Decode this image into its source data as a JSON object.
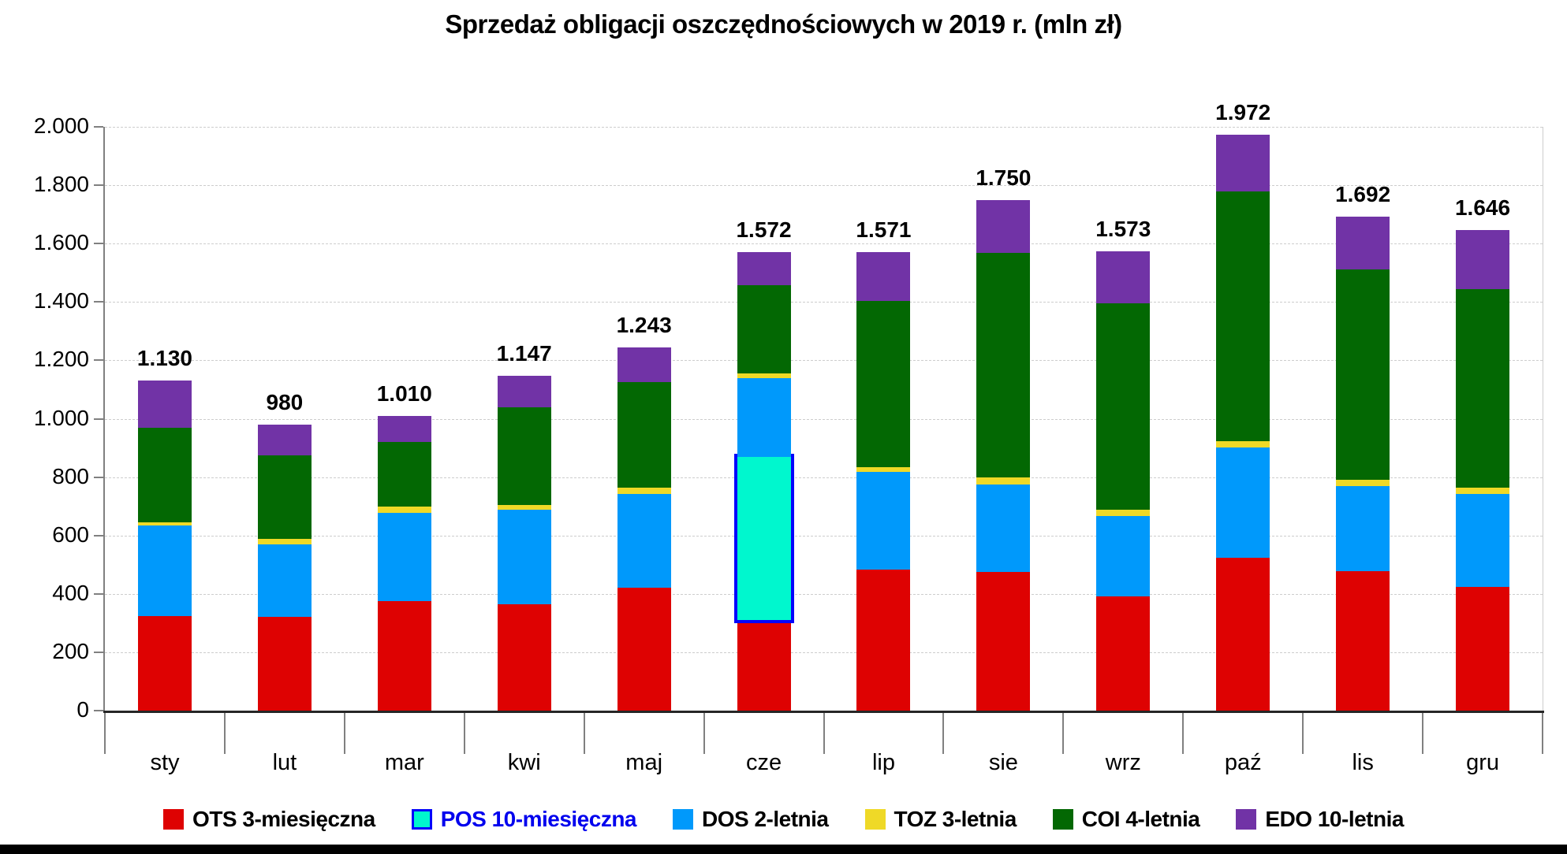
{
  "title": "Sprzedaż obligacji oszczędnościowych w 2019 r. (mln zł)",
  "colors": {
    "ots": "#de0202",
    "pos_fill": "#00f7ce",
    "pos_border": "#0404fb",
    "dos": "#0099fb",
    "toz": "#efd927",
    "coi": "#036803",
    "edo": "#7133a6",
    "grid": "#cdcdcd",
    "y_axis": "#808080",
    "x_axis": "#262626",
    "pos_label_text": "#0000ee",
    "default_text": "#000000"
  },
  "chart_data": {
    "type": "bar",
    "stacked": true,
    "title": "Sprzedaż obligacji oszczędnościowych w 2019 r. (mln zł)",
    "categories": [
      "sty",
      "lut",
      "mar",
      "kwi",
      "maj",
      "cze",
      "lip",
      "sie",
      "wrz",
      "paź",
      "lis",
      "gru"
    ],
    "series": [
      {
        "name": "OTS 3-miesięczna",
        "color_key": "ots",
        "values": [
          325,
          320,
          375,
          365,
          422,
          310,
          483,
          475,
          392,
          524,
          478,
          425
        ]
      },
      {
        "name": "POS 10-miesięczna",
        "color_key": "pos_fill",
        "outline_key": "pos_border",
        "values": [
          0,
          0,
          0,
          0,
          0,
          560,
          0,
          0,
          0,
          0,
          0,
          0
        ]
      },
      {
        "name": "DOS 2-letnia",
        "color_key": "dos",
        "values": [
          310,
          250,
          303,
          322,
          320,
          270,
          336,
          301,
          275,
          378,
          292,
          317
        ]
      },
      {
        "name": "TOZ 3-letnia",
        "color_key": "toz",
        "values": [
          11,
          18,
          20,
          18,
          21,
          14,
          16,
          22,
          20,
          21,
          22,
          23
        ]
      },
      {
        "name": "COI 4-letnia",
        "color_key": "coi",
        "values": [
          324,
          286,
          222,
          335,
          362,
          304,
          569,
          771,
          709,
          856,
          720,
          679
        ]
      },
      {
        "name": "EDO 10-letnia",
        "color_key": "edo",
        "values": [
          160,
          106,
          90,
          107,
          118,
          114,
          167,
          181,
          177,
          193,
          180,
          202
        ]
      }
    ],
    "totals": [
      1130,
      980,
      1010,
      1147,
      1243,
      1572,
      1571,
      1750,
      1573,
      1972,
      1692,
      1646
    ],
    "total_labels": [
      "1.130",
      "980",
      "1.010",
      "1.147",
      "1.243",
      "1.572",
      "1.571",
      "1.750",
      "1.573",
      "1.972",
      "1.692",
      "1.646"
    ],
    "y_tick_labels_top_down": [
      "2.000",
      "1.800",
      "1.600",
      "1.400",
      "1.200",
      "1.000",
      "800",
      "600",
      "400",
      "200",
      "0"
    ],
    "ylim": [
      0,
      2000
    ],
    "y_step": 200,
    "grid": true,
    "legend_position": "bottom"
  },
  "legend": {
    "items": [
      {
        "label": "OTS 3-miesięczna",
        "swatch_key": "ots",
        "text_key": "default_text"
      },
      {
        "label": "POS 10-miesięczna",
        "swatch_key": "pos_fill",
        "swatch_outline_key": "pos_border",
        "text_key": "pos_label_text"
      },
      {
        "label": "DOS 2-letnia",
        "swatch_key": "dos",
        "text_key": "default_text"
      },
      {
        "label": "TOZ 3-letnia",
        "swatch_key": "toz",
        "text_key": "default_text"
      },
      {
        "label": "COI 4-letnia",
        "swatch_key": "coi",
        "text_key": "default_text"
      },
      {
        "label": "EDO 10-letnia",
        "swatch_key": "edo",
        "text_key": "default_text"
      }
    ]
  }
}
